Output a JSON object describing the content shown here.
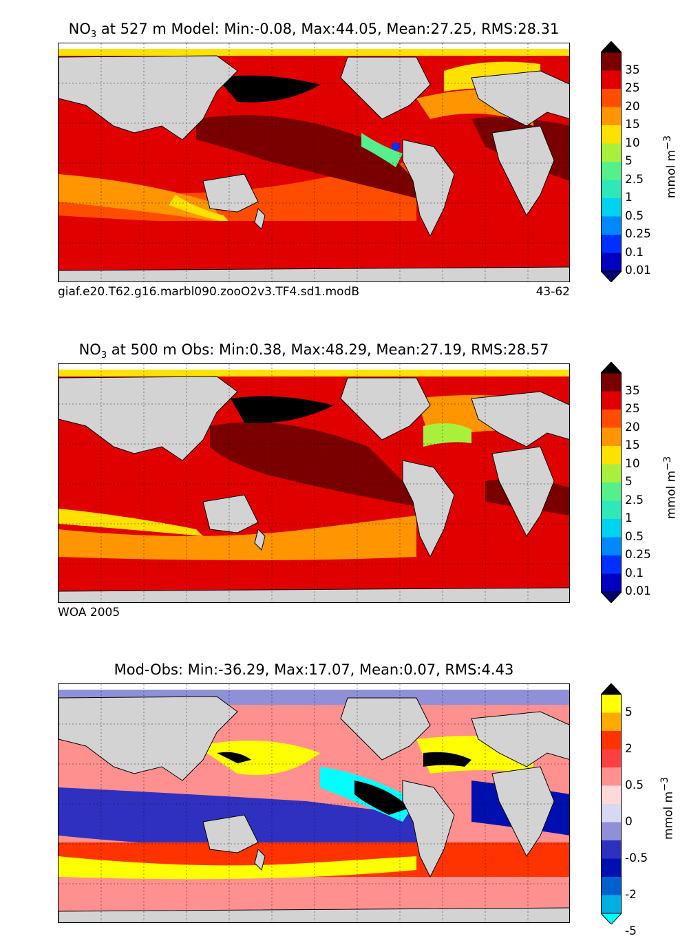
{
  "panels": [
    {
      "title_base": "NO",
      "title_sub": "3",
      "title_rest": " at 527 m Model: Min:-0.08, Max:44.05, Mean:27.25, RMS:28.31",
      "caption_left": "giaf.e20.T62.g16.marbl090.zooO2v3.TF4.sd1.modB",
      "caption_right": "43-62",
      "colorbar": {
        "ticks": [
          "35",
          "25",
          "20",
          "15",
          "10",
          "5",
          "2.5",
          "1",
          "0.5",
          "0.25",
          "0.1",
          "0.01"
        ],
        "colors": [
          "#000000",
          "#7a0000",
          "#e00000",
          "#ff4d00",
          "#ff9500",
          "#ffe100",
          "#a8f03c",
          "#55f08c",
          "#2ee8b8",
          "#00d2f0",
          "#0088ff",
          "#0030ff",
          "#0000c0",
          "#000070"
        ],
        "unit": "mmol m",
        "unit_sup": "−3"
      }
    },
    {
      "title_base": "NO",
      "title_sub": "3",
      "title_rest": " at 500 m Obs: Min:0.38, Max:48.29, Mean:27.19, RMS:28.57",
      "caption_left": "WOA 2005",
      "caption_right": "",
      "colorbar": {
        "ticks": [
          "35",
          "25",
          "20",
          "15",
          "10",
          "5",
          "2.5",
          "1",
          "0.5",
          "0.25",
          "0.1",
          "0.01"
        ],
        "colors": [
          "#000000",
          "#7a0000",
          "#e00000",
          "#ff4d00",
          "#ff9500",
          "#ffe100",
          "#a8f03c",
          "#55f08c",
          "#2ee8b8",
          "#00d2f0",
          "#0088ff",
          "#0030ff",
          "#0000c0",
          "#000070"
        ],
        "unit": "mmol m",
        "unit_sup": "−3"
      }
    },
    {
      "title_base": "Mod-Obs: Min:-36.29, Max:17.07, Mean:0.07, RMS:4.43",
      "title_sub": "",
      "title_rest": "",
      "caption_left": "",
      "caption_right": "",
      "colorbar": {
        "ticks": [
          "5",
          "2",
          "0.5",
          "0",
          "-0.5",
          "-2",
          "-5"
        ],
        "colors": [
          "#000000",
          "#ffff00",
          "#ffaa00",
          "#ff3300",
          "#ff4040",
          "#ff9090",
          "#ffd8d8",
          "#d8d8f0",
          "#9090d8",
          "#3030c0",
          "#0010b0",
          "#0060d0",
          "#00b0e0",
          "#00ffff"
        ],
        "unit": "mmol m",
        "unit_sup": "−3"
      }
    }
  ],
  "land_color": "#d3d3d3",
  "ocean_palette": {
    "model": [
      "#7a0000",
      "#e00000",
      "#ff4d00",
      "#ff9500",
      "#ffe100",
      "#000000"
    ],
    "obs": [
      "#7a0000",
      "#e00000",
      "#ff4d00",
      "#ff9500",
      "#ffe100",
      "#000000"
    ],
    "diff": [
      "#ffff00",
      "#ff3300",
      "#ff9090",
      "#3030c0",
      "#0010b0",
      "#00ffff",
      "#000000"
    ]
  }
}
